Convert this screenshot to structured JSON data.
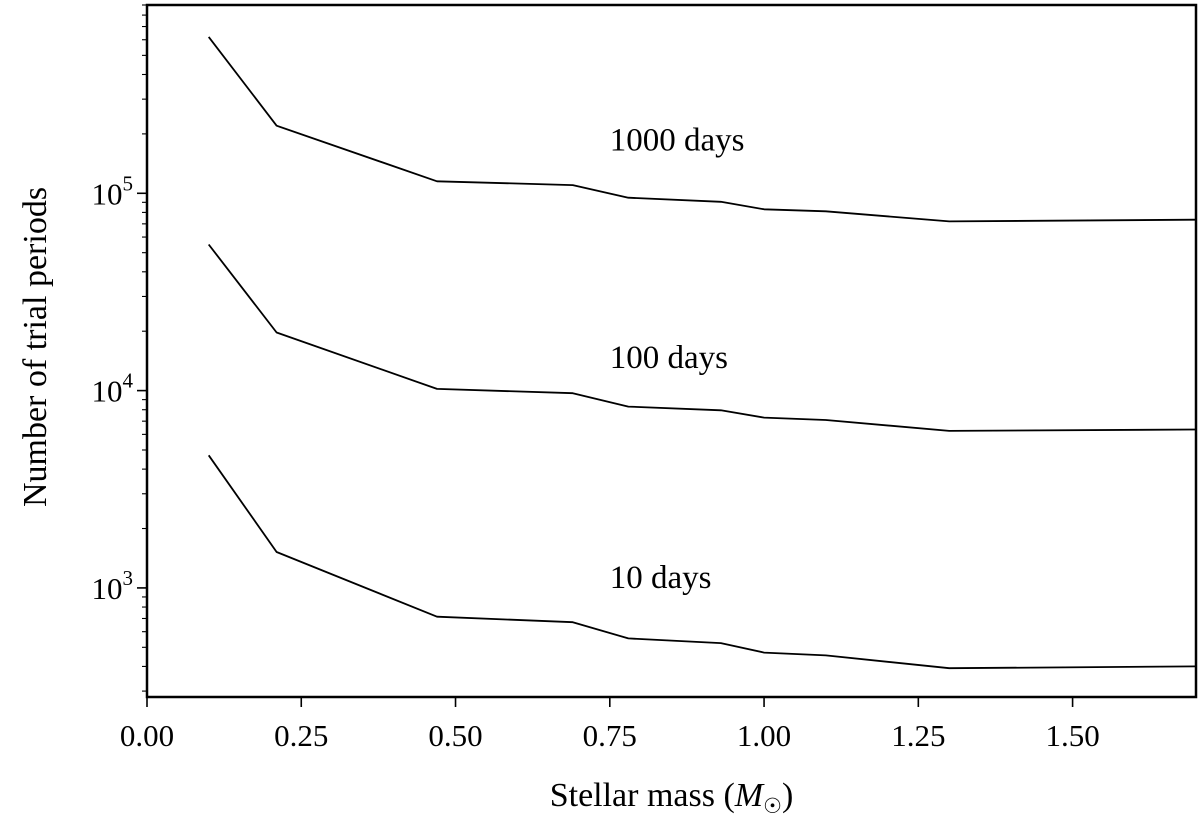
{
  "chart_data": {
    "type": "line",
    "title": "",
    "xlabel": "Stellar mass (",
    "xlabel_symbol": "M",
    "xlabel_subscript": "☉",
    "xlabel_close": ")",
    "ylabel": "Number of trial periods",
    "xscale": "linear",
    "yscale": "log",
    "xlim": [
      0.0,
      1.7
    ],
    "ylim": [
      280,
      900000
    ],
    "x_ticks": [
      0.0,
      0.25,
      0.5,
      0.75,
      1.0,
      1.25,
      1.5
    ],
    "x_tick_labels": [
      "0.00",
      "0.25",
      "0.50",
      "0.75",
      "1.00",
      "1.25",
      "1.50"
    ],
    "y_ticks": [
      1000,
      10000,
      100000
    ],
    "y_tick_labels": [
      {
        "base": "10",
        "exp": "3"
      },
      {
        "base": "10",
        "exp": "4"
      },
      {
        "base": "10",
        "exp": "5"
      }
    ],
    "x": [
      0.1,
      0.21,
      0.47,
      0.69,
      0.78,
      0.93,
      1.0,
      1.1,
      1.3,
      1.7
    ],
    "series": [
      {
        "name": "10 days",
        "label": "10 days",
        "label_anchor": [
          0.75,
          1000
        ],
        "values": [
          4700,
          1520,
          715,
          670,
          555,
          525,
          470,
          455,
          392,
          400
        ]
      },
      {
        "name": "100 days",
        "label": "100 days",
        "label_anchor": [
          0.75,
          13000
        ],
        "values": [
          55000,
          19700,
          10200,
          9700,
          8300,
          7950,
          7300,
          7100,
          6250,
          6350
        ]
      },
      {
        "name": "1000 days",
        "label": "1000 days",
        "label_anchor": [
          0.75,
          165000
        ],
        "values": [
          620000,
          220000,
          115000,
          110000,
          95000,
          90500,
          83000,
          81000,
          72000,
          73500
        ]
      }
    ],
    "grid": false,
    "legend": "none"
  }
}
